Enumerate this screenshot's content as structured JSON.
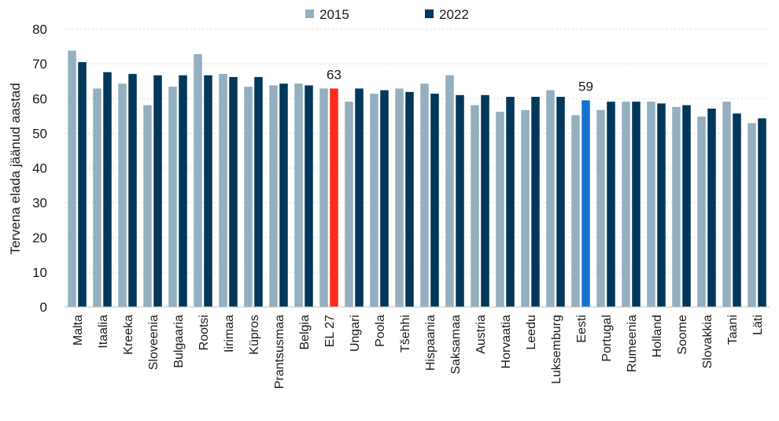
{
  "chart_data": {
    "type": "bar",
    "title": "",
    "xlabel": "",
    "ylabel": "Tervena elada jäänud aastad",
    "ylim": [
      0,
      80
    ],
    "yticks": [
      0,
      10,
      20,
      30,
      40,
      50,
      60,
      70,
      80
    ],
    "legend_position": "top-center",
    "categories": [
      "Malta",
      "Itaalia",
      "Kreeka",
      "Sloveenia",
      "Bulgaaria",
      "Rootsi",
      "Iirimaa",
      "Küpros",
      "Prantsusmaa",
      "Belgia",
      "EL 27",
      "Ungari",
      "Poola",
      "Tšehhi",
      "Hispaania",
      "Saksamaa",
      "Austria",
      "Horvaatia",
      "Leedu",
      "Luksemburg",
      "Eesti",
      "Portugal",
      "Rumeenia",
      "Holland",
      "Soome",
      "Slovakkia",
      "Taani",
      "Läti"
    ],
    "series": [
      {
        "name": "2015",
        "color": "#94AFBF",
        "values": [
          73.8,
          62.9,
          64.3,
          58.1,
          63.4,
          72.8,
          67.1,
          63.4,
          63.8,
          64.3,
          62.9,
          59.1,
          61.4,
          62.9,
          64.3,
          66.7,
          58.1,
          56.2,
          56.7,
          62.4,
          55.2,
          56.7,
          59.1,
          59.1,
          57.6,
          54.8,
          59.1,
          52.9
        ]
      },
      {
        "name": "2022",
        "color": "#00375A",
        "values": [
          70.5,
          67.6,
          67.1,
          66.7,
          66.7,
          66.7,
          66.2,
          66.2,
          64.3,
          63.8,
          62.9,
          62.9,
          62.4,
          61.9,
          61.4,
          61.0,
          61.0,
          60.5,
          60.5,
          60.5,
          59.5,
          59.1,
          59.1,
          58.6,
          58.1,
          57.1,
          55.7,
          54.3
        ]
      }
    ],
    "highlights": [
      {
        "category": "EL 27",
        "series": "2022",
        "color": "#FF2A1A",
        "label": "63"
      },
      {
        "category": "Eesti",
        "series": "2022",
        "color": "#1672D0",
        "label": "59"
      }
    ]
  }
}
